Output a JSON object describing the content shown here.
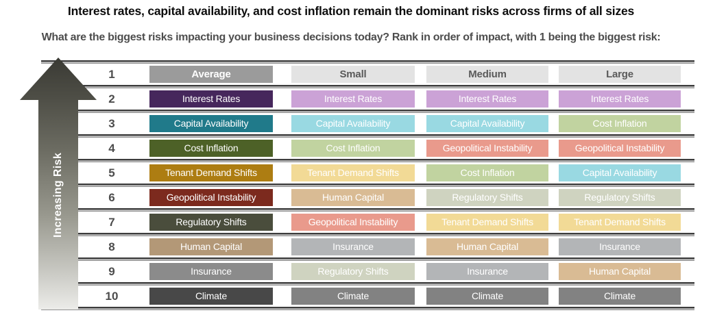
{
  "title": "Interest rates, capital availability, and cost inflation remain the dominant risks across firms of all sizes",
  "subtitle": "What are the biggest risks impacting your business decisions today? Rank in order of impact, with 1 being the biggest risk:",
  "arrow": {
    "label": "Increasing Risk"
  },
  "palette": {
    "header_average_bg": "#9b9b9b",
    "header_average_text": "#ffffff",
    "header_bg": "#e3e3e3",
    "header_text": "#5a5a5a",
    "cell_text": "#ffffff",
    "dark": {
      "Interest Rates": "#46275c",
      "Capital Availability": "#207a8a",
      "Cost Inflation": "#4d6127",
      "Tenant Demand Shifts": "#ad7d12",
      "Geopolitical Instability": "#7c2a1e",
      "Regulatory Shifts": "#4a4d3c",
      "Human Capital": "#b39877",
      "Insurance": "#8b8b8b",
      "Climate": "#484848"
    },
    "light": {
      "Interest Rates": "#cba2d6",
      "Capital Availability": "#99d9e2",
      "Cost Inflation": "#c1d3a0",
      "Tenant Demand Shifts": "#f2da96",
      "Geopolitical Instability": "#e99a8c",
      "Regulatory Shifts": "#cfd3c0",
      "Human Capital": "#d9bb94",
      "Insurance": "#b3b5b7",
      "Climate": "#828282"
    }
  },
  "chart_data": {
    "type": "table",
    "title": "Interest rates, capital availability, and cost inflation remain the dominant risks across firms of all sizes",
    "question": "What are the biggest risks impacting your business decisions today? Rank in order of impact, with 1 being the biggest risk:",
    "rank_axis_label": "Increasing Risk",
    "columns": [
      "Average",
      "Small",
      "Medium",
      "Large"
    ],
    "rows": [
      {
        "rank": "1",
        "header": true,
        "cells": [
          {
            "label": "Average"
          },
          {
            "label": "Small"
          },
          {
            "label": "Medium"
          },
          {
            "label": "Large"
          }
        ]
      },
      {
        "rank": "2",
        "header": false,
        "cells": [
          {
            "label": "Interest Rates"
          },
          {
            "label": "Interest Rates"
          },
          {
            "label": "Interest Rates"
          },
          {
            "label": "Interest Rates"
          }
        ]
      },
      {
        "rank": "3",
        "header": false,
        "cells": [
          {
            "label": "Capital Availability"
          },
          {
            "label": "Capital Availability"
          },
          {
            "label": "Capital Availability"
          },
          {
            "label": "Cost Inflation"
          }
        ]
      },
      {
        "rank": "4",
        "header": false,
        "cells": [
          {
            "label": "Cost Inflation"
          },
          {
            "label": "Cost Inflation"
          },
          {
            "label": "Geopolitical Instability"
          },
          {
            "label": "Geopolitical Instability"
          }
        ]
      },
      {
        "rank": "5",
        "header": false,
        "cells": [
          {
            "label": "Tenant Demand Shifts"
          },
          {
            "label": "Tenant Demand Shifts"
          },
          {
            "label": "Cost Inflation"
          },
          {
            "label": "Capital Availability"
          }
        ]
      },
      {
        "rank": "6",
        "header": false,
        "cells": [
          {
            "label": "Geopolitical Instability"
          },
          {
            "label": "Human Capital"
          },
          {
            "label": "Regulatory Shifts"
          },
          {
            "label": "Regulatory Shifts"
          }
        ]
      },
      {
        "rank": "7",
        "header": false,
        "cells": [
          {
            "label": "Regulatory Shifts"
          },
          {
            "label": "Geopolitical Instability"
          },
          {
            "label": "Tenant Demand Shifts"
          },
          {
            "label": "Tenant Demand Shifts"
          }
        ]
      },
      {
        "rank": "8",
        "header": false,
        "cells": [
          {
            "label": "Human Capital"
          },
          {
            "label": "Insurance"
          },
          {
            "label": "Human Capital"
          },
          {
            "label": "Insurance"
          }
        ]
      },
      {
        "rank": "9",
        "header": false,
        "cells": [
          {
            "label": "Insurance"
          },
          {
            "label": "Regulatory Shifts"
          },
          {
            "label": "Insurance"
          },
          {
            "label": "Human Capital"
          }
        ]
      },
      {
        "rank": "10",
        "header": false,
        "cells": [
          {
            "label": "Climate"
          },
          {
            "label": "Climate"
          },
          {
            "label": "Climate"
          },
          {
            "label": "Climate"
          }
        ]
      }
    ]
  }
}
